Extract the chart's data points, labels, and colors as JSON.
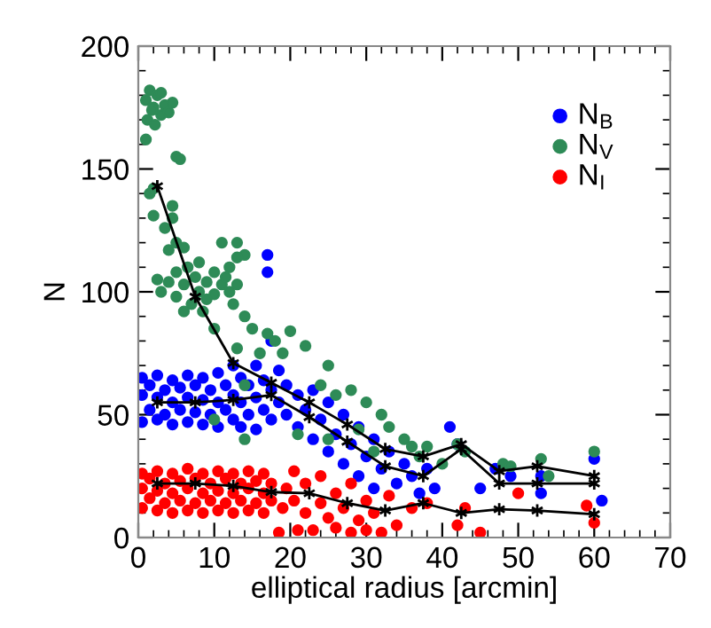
{
  "chart_data": {
    "type": "scatter",
    "xlabel": "elliptical radius [arcmin]",
    "ylabel": "N",
    "xlim": [
      0,
      70
    ],
    "xticks": [
      0,
      10,
      20,
      30,
      40,
      50,
      60,
      70
    ],
    "ylim": [
      0,
      200
    ],
    "yticks": [
      0,
      50,
      100,
      150,
      200
    ],
    "grid": false,
    "legend": "top right",
    "marker": "circle",
    "series": [
      {
        "name": "N$_{B}$",
        "color": "#0000ff",
        "x": [
          0.5,
          0.5,
          0.5,
          1.5,
          1.5,
          2.5,
          2.5,
          2.5,
          3.5,
          3.5,
          4.5,
          4.5,
          4.5,
          5.5,
          5.5,
          6.5,
          6.5,
          6.5,
          7.5,
          7.5,
          8.5,
          8.5,
          8.5,
          9.5,
          9.5,
          10.5,
          10.5,
          10.5,
          11.5,
          11.5,
          12.5,
          12.5,
          12.5,
          13.5,
          13.5,
          13.5,
          14.5,
          14.5,
          15.5,
          15.5,
          15.5,
          16.5,
          16.5,
          17.5,
          17.5,
          17.5,
          18.5,
          18.5,
          19.5,
          19.5,
          21,
          21,
          22,
          23,
          23,
          24,
          25,
          25,
          26,
          27,
          27,
          28,
          29,
          29,
          30,
          31,
          31,
          32,
          33,
          34,
          35,
          36,
          37,
          38,
          39,
          41,
          42,
          45,
          47,
          49,
          53,
          53,
          60,
          61,
          17,
          17
        ],
        "values": [
          47,
          58,
          65,
          52,
          62,
          48,
          57,
          66,
          50,
          60,
          46,
          55,
          64,
          52,
          61,
          47,
          57,
          66,
          51,
          62,
          46,
          56,
          65,
          50,
          60,
          45,
          55,
          67,
          52,
          62,
          48,
          58,
          70,
          45,
          55,
          65,
          50,
          62,
          44,
          57,
          70,
          52,
          64,
          48,
          60,
          80,
          55,
          68,
          50,
          62,
          45,
          58,
          52,
          40,
          60,
          48,
          35,
          55,
          42,
          30,
          50,
          38,
          25,
          45,
          33,
          20,
          40,
          28,
          35,
          22,
          30,
          25,
          18,
          28,
          20,
          45,
          38,
          20,
          28,
          25,
          18,
          25,
          32,
          15,
          108,
          115
        ]
      },
      {
        "name": "N$_{V}$",
        "color": "#2e8b57",
        "x": [
          1,
          1.5,
          2,
          2.5,
          3,
          3.5,
          1.2,
          2.2,
          4,
          4.5,
          3,
          1.8,
          1,
          5,
          5.5,
          1.5,
          2,
          2,
          4.5,
          4.5,
          3.5,
          4,
          5,
          6,
          11,
          13,
          14,
          13,
          12,
          2.5,
          3,
          4,
          5,
          5,
          6,
          6.5,
          7,
          7.5,
          8,
          8,
          9,
          9,
          10,
          10,
          11,
          11.5,
          12,
          12.5,
          13,
          8.5,
          14,
          6,
          10,
          15,
          17,
          18,
          20,
          19,
          22,
          25,
          16,
          14,
          13,
          24,
          26,
          28,
          30,
          29,
          32,
          33,
          31,
          35,
          36,
          38,
          37,
          40,
          42,
          43,
          48,
          49,
          53,
          54,
          60,
          14,
          21,
          25,
          10
        ],
        "values": [
          178,
          182,
          175,
          180,
          172,
          176,
          170,
          168,
          173,
          177,
          181,
          174,
          162,
          155,
          154,
          140,
          142,
          131,
          135,
          130,
          126,
          117,
          120,
          118,
          120,
          120,
          115,
          114,
          110,
          105,
          100,
          104,
          108,
          98,
          103,
          110,
          95,
          106,
          100,
          112,
          97,
          104,
          108,
          99,
          103,
          106,
          100,
          95,
          103,
          92,
          90,
          92,
          85,
          85,
          83,
          80,
          84,
          75,
          78,
          70,
          75,
          62,
          77,
          62,
          58,
          60,
          55,
          44,
          50,
          45,
          35,
          40,
          37,
          37,
          33,
          30,
          38,
          35,
          30,
          29,
          32,
          25,
          35,
          40,
          42,
          40,
          48
        ]
      },
      {
        "name": "N$_{I}$",
        "color": "#ff0000",
        "x": [
          0.5,
          0.5,
          0.5,
          1.5,
          1.5,
          2.5,
          2.5,
          2.5,
          3.5,
          3.5,
          4.5,
          4.5,
          4.5,
          5.5,
          5.5,
          6.5,
          6.5,
          6.5,
          7.5,
          7.5,
          8.5,
          8.5,
          8.5,
          9.5,
          9.5,
          10.5,
          10.5,
          10.5,
          11.5,
          11.5,
          12.5,
          12.5,
          12.5,
          13.5,
          13.5,
          14.5,
          14.5,
          14.5,
          15.5,
          15.5,
          16.5,
          16.5,
          16.5,
          17.5,
          17.5,
          18.5,
          19,
          19.5,
          20.5,
          20.5,
          21,
          22,
          22,
          23,
          24,
          24,
          25,
          26,
          26,
          27,
          28,
          28,
          29,
          30,
          30,
          31,
          32,
          33,
          34,
          36,
          38,
          42,
          43,
          45,
          50,
          59,
          60
        ],
        "values": [
          12,
          20,
          26,
          16,
          24,
          11,
          19,
          27,
          14,
          22,
          10,
          18,
          26,
          15,
          23,
          11,
          20,
          28,
          14,
          24,
          10,
          18,
          26,
          15,
          22,
          11,
          19,
          27,
          14,
          24,
          10,
          18,
          26,
          15,
          22,
          11,
          20,
          27,
          14,
          23,
          10,
          18,
          26,
          15,
          22,
          2,
          12,
          20,
          15,
          27,
          3,
          10,
          22,
          3,
          14,
          25,
          8,
          4,
          18,
          12,
          2,
          22,
          7,
          15,
          3,
          10,
          2,
          17,
          5,
          12,
          14,
          5,
          12,
          2,
          18,
          13,
          6
        ]
      },
      {
        "color": "#000000",
        "type": "line",
        "marker": "cross",
        "x": [
          2.5,
          7.5,
          12.5,
          17.5,
          22.5,
          27.5,
          32.5,
          37.5,
          42.5,
          47.5,
          52.5,
          60
        ],
        "values": [
          55,
          55,
          56,
          58,
          49,
          39,
          29,
          25,
          36,
          22,
          22,
          22
        ]
      },
      {
        "color": "#000000",
        "type": "line",
        "marker": "cross",
        "x": [
          2.5,
          7.5,
          12.5,
          17.5,
          22.5,
          27.5,
          32.5,
          37.5,
          42.5,
          47.5,
          52.5,
          60
        ],
        "values": [
          143,
          98,
          71,
          63,
          55,
          46,
          36,
          33,
          38,
          27,
          29,
          25
        ]
      },
      {
        "color": "#000000",
        "type": "line",
        "marker": "cross",
        "x": [
          2.5,
          7.5,
          12.5,
          17.5,
          22.5,
          27.5,
          32.5,
          37.5,
          42.5,
          47.5,
          52.5,
          60
        ],
        "values": [
          22,
          22,
          21,
          18.5,
          18,
          14,
          11,
          14,
          10,
          11.5,
          11,
          9.5
        ]
      }
    ]
  }
}
